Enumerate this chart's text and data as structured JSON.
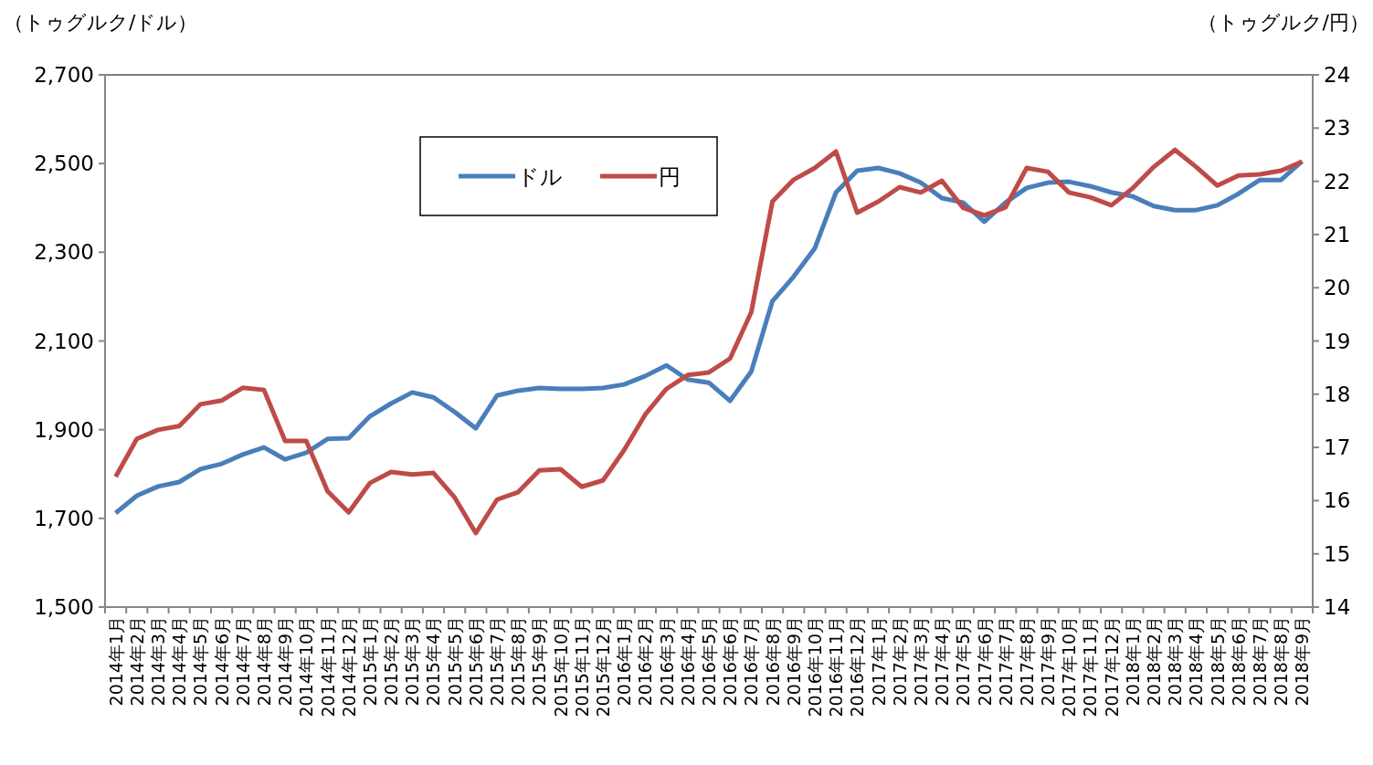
{
  "chart_data": {
    "type": "line",
    "ylabel": "（トゥグルク/ドル）",
    "y2label": "（トゥグルク/円）",
    "categories": [
      "2014年1月",
      "2014年2月",
      "2014年3月",
      "2014年4月",
      "2014年5月",
      "2014年6月",
      "2014年7月",
      "2014年8月",
      "2014年9月",
      "2014年10月",
      "2014年11月",
      "2014年12月",
      "2015年1月",
      "2015年2月",
      "2015年3月",
      "2015年4月",
      "2015年5月",
      "2015年6月",
      "2015年7月",
      "2015年8月",
      "2015年9月",
      "2015年10月",
      "2015年11月",
      "2015年12月",
      "2016年1月",
      "2016年2月",
      "2016年3月",
      "2016年4月",
      "2016年5月",
      "2016年6月",
      "2016年7月",
      "2016年8月",
      "2016年9月",
      "2016年10月",
      "2016年11月",
      "2016年12月",
      "2017年1月",
      "2017年2月",
      "2017年3月",
      "2017年4月",
      "2017年5月",
      "2017年6月",
      "2017年7月",
      "2017年8月",
      "2017年9月",
      "2017年10月",
      "2017年11月",
      "2017年12月",
      "2018年1月",
      "2018年2月",
      "2018年3月",
      "2018年4月",
      "2018年5月",
      "2018年6月",
      "2018年7月",
      "2018年8月",
      "2018年9月"
    ],
    "series": [
      {
        "name": "ドル",
        "color": "#4a7ebb",
        "values": [
          1712,
          1751,
          1772,
          1782,
          1811,
          1823,
          1844,
          1860,
          1833,
          1848,
          1879,
          1881,
          1930,
          1959,
          1984,
          1973,
          1940,
          1903,
          1977,
          1988,
          1994,
          1992,
          1992,
          1994,
          2002,
          2021,
          2045,
          2013,
          2006,
          1965,
          2031,
          2190,
          2245,
          2309,
          2435,
          2484,
          2490,
          2478,
          2457,
          2422,
          2412,
          2369,
          2412,
          2445,
          2457,
          2459,
          2449,
          2435,
          2426,
          2404,
          2395,
          2395,
          2406,
          2432,
          2463,
          2463,
          2505
        ]
      },
      {
        "name": "円",
        "color": "#be4b48",
        "axis": "y2",
        "values": [
          16.45,
          17.16,
          17.33,
          17.4,
          17.81,
          17.88,
          18.12,
          18.08,
          17.12,
          17.12,
          16.18,
          15.78,
          16.33,
          16.54,
          16.49,
          16.52,
          16.06,
          15.39,
          16.02,
          16.16,
          16.57,
          16.59,
          16.26,
          16.38,
          16.95,
          17.62,
          18.1,
          18.36,
          18.41,
          18.67,
          19.54,
          21.62,
          22.03,
          22.25,
          22.56,
          21.41,
          21.62,
          21.89,
          21.79,
          22.01,
          21.5,
          21.36,
          21.51,
          22.25,
          22.18,
          21.79,
          21.7,
          21.55,
          21.87,
          22.27,
          22.59,
          22.27,
          21.92,
          22.11,
          22.13,
          22.2,
          22.37
        ]
      }
    ],
    "ylim": [
      1500,
      2700
    ],
    "yticks": [
      {
        "value": 1500,
        "label": "1,500"
      },
      {
        "value": 1700,
        "label": "1,700"
      },
      {
        "value": 1900,
        "label": "1,900"
      },
      {
        "value": 2100,
        "label": "2,100"
      },
      {
        "value": 2300,
        "label": "2,300"
      },
      {
        "value": 2500,
        "label": "2,500"
      },
      {
        "value": 2700,
        "label": "2,700"
      }
    ],
    "y2lim": [
      14,
      24
    ],
    "y2ticks": [
      14,
      15,
      16,
      17,
      18,
      19,
      20,
      21,
      22,
      23,
      24
    ],
    "grid": false,
    "legend": "top",
    "marker": "none",
    "line_style": "solid"
  }
}
